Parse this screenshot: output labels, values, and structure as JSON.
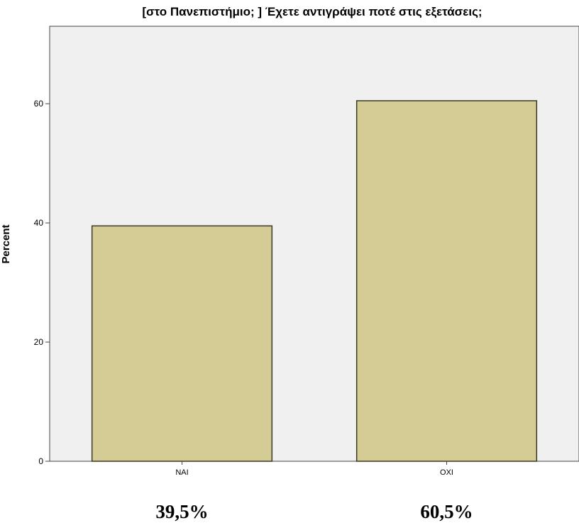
{
  "chart_data": {
    "type": "bar",
    "title": "[στο Πανεπιστήμιο; ] Έχετε αντιγράψει ποτέ στις εξετάσεις;",
    "xlabel": "",
    "ylabel": "Percent",
    "categories": [
      "ΝΑΙ",
      "ΟΧΙ"
    ],
    "values": [
      39.5,
      60.5
    ],
    "value_labels": [
      "39,5%",
      "60,5%"
    ],
    "yticks": [
      0,
      20,
      40,
      60
    ],
    "ylim": [
      0,
      73
    ],
    "grid": false,
    "colors": {
      "bar_fill": "#d4cc94",
      "bar_stroke": "#3a3a24",
      "plot_background": "#f0f0f0"
    }
  }
}
